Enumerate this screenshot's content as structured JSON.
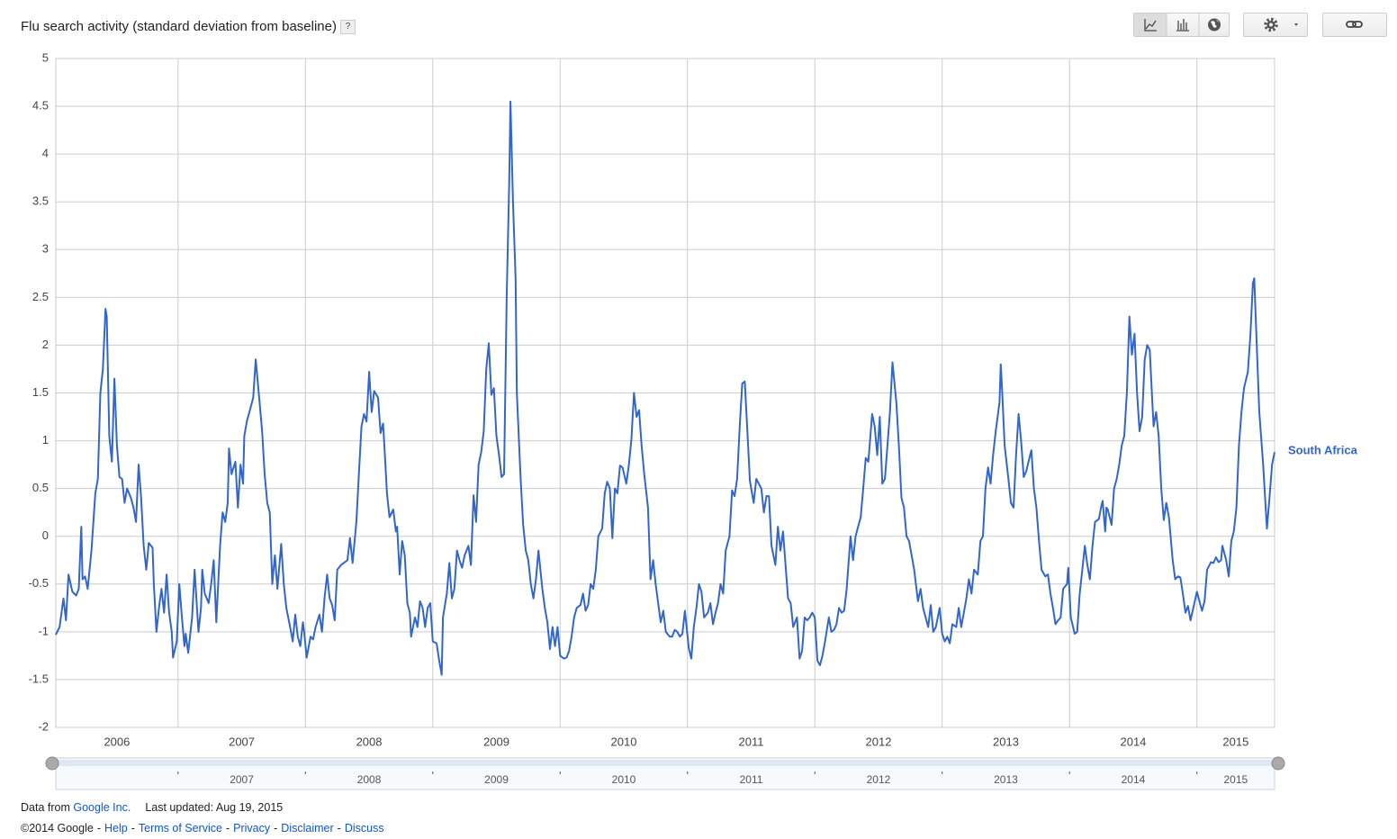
{
  "chart_data": {
    "type": "line",
    "title": "Flu search activity (standard deviation from baseline)",
    "help_badge": "?",
    "x": [
      2006.04,
      2006.07,
      2006.1,
      2006.12,
      2006.14,
      2006.17,
      2006.2,
      2006.22,
      2006.24,
      2006.25,
      2006.27,
      2006.29,
      2006.32,
      2006.35,
      2006.37,
      2006.39,
      2006.41,
      2006.43,
      2006.44,
      2006.46,
      2006.48,
      2006.5,
      2006.52,
      2006.54,
      2006.56,
      2006.58,
      2006.6,
      2006.63,
      2006.65,
      2006.67,
      2006.69,
      2006.71,
      2006.73,
      2006.75,
      2006.77,
      2006.8,
      2006.81,
      2006.83,
      2006.85,
      2006.87,
      2006.89,
      2006.91,
      2006.93,
      2006.95,
      2006.96,
      2006.99,
      2007.01,
      2007.03,
      2007.05,
      2007.06,
      2007.08,
      2007.11,
      2007.13,
      2007.16,
      2007.18,
      2007.19,
      2007.21,
      2007.24,
      2007.26,
      2007.28,
      2007.3,
      2007.33,
      2007.35,
      2007.37,
      2007.39,
      2007.4,
      2007.42,
      2007.45,
      2007.47,
      2007.49,
      2007.51,
      2007.52,
      2007.54,
      2007.57,
      2007.59,
      2007.61,
      2007.64,
      2007.66,
      2007.68,
      2007.7,
      2007.72,
      2007.74,
      2007.76,
      2007.78,
      2007.81,
      2007.83,
      2007.85,
      2007.88,
      2007.9,
      2007.92,
      2007.94,
      2007.96,
      2007.98,
      2007.99,
      2008.01,
      2008.04,
      2008.06,
      2008.08,
      2008.11,
      2008.13,
      2008.15,
      2008.17,
      2008.19,
      2008.21,
      2008.23,
      2008.25,
      2008.28,
      2008.3,
      2008.33,
      2008.35,
      2008.37,
      2008.4,
      2008.42,
      2008.44,
      2008.46,
      2008.48,
      2008.5,
      2008.52,
      2008.54,
      2008.57,
      2008.59,
      2008.61,
      2008.62,
      2008.64,
      2008.66,
      2008.69,
      2008.71,
      2008.72,
      2008.74,
      2008.76,
      2008.78,
      2008.8,
      2008.82,
      2008.83,
      2008.86,
      2008.88,
      2008.9,
      2008.92,
      2008.94,
      2008.96,
      2008.98,
      2009.0,
      2009.03,
      2009.05,
      2009.07,
      2009.08,
      2009.11,
      2009.13,
      2009.15,
      2009.17,
      2009.19,
      2009.21,
      2009.23,
      2009.25,
      2009.28,
      2009.3,
      2009.32,
      2009.34,
      2009.36,
      2009.38,
      2009.4,
      2009.42,
      2009.44,
      2009.46,
      2009.48,
      2009.5,
      2009.52,
      2009.54,
      2009.56,
      2009.58,
      2009.6,
      2009.61,
      2009.63,
      2009.65,
      2009.66,
      2009.69,
      2009.71,
      2009.73,
      2009.75,
      2009.77,
      2009.79,
      2009.81,
      2009.83,
      2009.86,
      2009.88,
      2009.9,
      2009.92,
      2009.94,
      2009.96,
      2009.98,
      2010.0,
      2010.03,
      2010.05,
      2010.07,
      2010.09,
      2010.11,
      2010.13,
      2010.16,
      2010.18,
      2010.2,
      2010.22,
      2010.24,
      2010.26,
      2010.28,
      2010.3,
      2010.33,
      2010.35,
      2010.37,
      2010.39,
      2010.41,
      2010.43,
      2010.45,
      2010.47,
      2010.49,
      2010.52,
      2010.54,
      2010.56,
      2010.58,
      2010.6,
      2010.62,
      2010.64,
      2010.66,
      2010.69,
      2010.71,
      2010.73,
      2010.75,
      2010.77,
      2010.79,
      2010.81,
      2010.83,
      2010.86,
      2010.88,
      2010.9,
      2010.92,
      2010.94,
      2010.96,
      2010.98,
      2011.01,
      2011.03,
      2011.05,
      2011.07,
      2011.09,
      2011.11,
      2011.13,
      2011.16,
      2011.18,
      2011.2,
      2011.22,
      2011.24,
      2011.26,
      2011.28,
      2011.3,
      2011.33,
      2011.35,
      2011.37,
      2011.39,
      2011.41,
      2011.43,
      2011.45,
      2011.47,
      2011.49,
      2011.52,
      2011.54,
      2011.56,
      2011.58,
      2011.6,
      2011.62,
      2011.64,
      2011.66,
      2011.69,
      2011.71,
      2011.73,
      2011.75,
      2011.77,
      2011.79,
      2011.81,
      2011.83,
      2011.86,
      2011.88,
      2011.9,
      2011.92,
      2011.94,
      2011.96,
      2011.98,
      2012.0,
      2012.02,
      2012.04,
      2012.06,
      2012.08,
      2012.11,
      2012.13,
      2012.15,
      2012.17,
      2012.19,
      2012.21,
      2012.23,
      2012.25,
      2012.28,
      2012.3,
      2012.32,
      2012.34,
      2012.36,
      2012.38,
      2012.4,
      2012.42,
      2012.45,
      2012.47,
      2012.49,
      2012.51,
      2012.53,
      2012.55,
      2012.57,
      2012.59,
      2012.61,
      2012.64,
      2012.66,
      2012.68,
      2012.7,
      2012.72,
      2012.74,
      2012.76,
      2012.78,
      2012.81,
      2012.83,
      2012.85,
      2012.87,
      2012.89,
      2012.91,
      2012.93,
      2012.95,
      2012.98,
      2013.0,
      2013.02,
      2013.04,
      2013.06,
      2013.08,
      2013.11,
      2013.13,
      2013.15,
      2013.17,
      2013.19,
      2013.21,
      2013.23,
      2013.25,
      2013.28,
      2013.3,
      2013.32,
      2013.34,
      2013.36,
      2013.38,
      2013.4,
      2013.42,
      2013.45,
      2013.46,
      2013.47,
      2013.49,
      2013.52,
      2013.54,
      2013.56,
      2013.58,
      2013.6,
      2013.62,
      2013.64,
      2013.66,
      2013.69,
      2013.7,
      2013.72,
      2013.74,
      2013.76,
      2013.78,
      2013.81,
      2013.83,
      2013.85,
      2013.87,
      2013.89,
      2013.91,
      2013.93,
      2013.95,
      2013.98,
      2013.99,
      2014.01,
      2014.04,
      2014.06,
      2014.08,
      2014.1,
      2014.12,
      2014.14,
      2014.16,
      2014.18,
      2014.2,
      2014.23,
      2014.25,
      2014.26,
      2014.28,
      2014.29,
      2014.3,
      2014.33,
      2014.35,
      2014.37,
      2014.39,
      2014.41,
      2014.43,
      2014.45,
      2014.47,
      2014.49,
      2014.51,
      2014.53,
      2014.55,
      2014.57,
      2014.59,
      2014.61,
      2014.63,
      2014.65,
      2014.66,
      2014.68,
      2014.7,
      2014.72,
      2014.74,
      2014.76,
      2014.78,
      2014.81,
      2014.83,
      2014.85,
      2014.87,
      2014.89,
      2014.91,
      2014.93,
      2014.95,
      2014.98,
      2015.0,
      2015.02,
      2015.04,
      2015.06,
      2015.08,
      2015.11,
      2015.13,
      2015.15,
      2015.17,
      2015.19,
      2015.2,
      2015.23,
      2015.25,
      2015.27,
      2015.29,
      2015.31,
      2015.33,
      2015.35,
      2015.37,
      2015.4,
      2015.42,
      2015.44,
      2015.45,
      2015.47,
      2015.49,
      2015.52,
      2015.54,
      2015.55,
      2015.57,
      2015.59,
      2015.61
    ],
    "series": [
      {
        "name": "South Africa",
        "color": "#3366cc",
        "values": [
          -1.03,
          -0.95,
          -0.65,
          -0.88,
          -0.4,
          -0.58,
          -0.62,
          -0.55,
          0.1,
          -0.45,
          -0.42,
          -0.55,
          -0.15,
          0.45,
          0.6,
          1.5,
          1.75,
          2.38,
          2.3,
          1.05,
          0.78,
          1.65,
          0.95,
          0.62,
          0.6,
          0.35,
          0.5,
          0.4,
          0.3,
          0.15,
          0.75,
          0.4,
          -0.1,
          -0.35,
          -0.07,
          -0.12,
          -0.5,
          -1.0,
          -0.75,
          -0.55,
          -0.8,
          -0.4,
          -0.8,
          -1.0,
          -1.27,
          -1.1,
          -0.5,
          -0.85,
          -1.15,
          -1.02,
          -1.22,
          -0.85,
          -0.35,
          -1.0,
          -0.75,
          -0.35,
          -0.6,
          -0.7,
          -0.5,
          -0.25,
          -0.9,
          -0.1,
          0.25,
          0.15,
          0.35,
          0.92,
          0.65,
          0.78,
          0.3,
          0.75,
          0.55,
          1.05,
          1.2,
          1.35,
          1.45,
          1.85,
          1.4,
          1.1,
          0.65,
          0.35,
          0.25,
          -0.5,
          -0.2,
          -0.55,
          -0.08,
          -0.5,
          -0.75,
          -0.95,
          -1.1,
          -0.82,
          -1.05,
          -1.15,
          -0.9,
          -1.0,
          -1.27,
          -1.05,
          -1.08,
          -0.95,
          -0.82,
          -1.0,
          -0.65,
          -0.4,
          -0.65,
          -0.72,
          -0.88,
          -0.35,
          -0.3,
          -0.28,
          -0.25,
          -0.02,
          -0.28,
          0.15,
          0.65,
          1.15,
          1.28,
          1.2,
          1.72,
          1.3,
          1.52,
          1.45,
          1.08,
          1.18,
          0.95,
          0.45,
          0.2,
          0.28,
          0.05,
          0.1,
          -0.4,
          -0.05,
          -0.2,
          -0.7,
          -0.8,
          -1.05,
          -0.85,
          -0.95,
          -0.68,
          -0.75,
          -0.95,
          -0.75,
          -0.7,
          -1.1,
          -1.12,
          -1.3,
          -1.45,
          -0.85,
          -0.6,
          -0.28,
          -0.65,
          -0.55,
          -0.15,
          -0.25,
          -0.33,
          -0.2,
          -0.1,
          -0.3,
          0.43,
          0.15,
          0.75,
          0.88,
          1.1,
          1.75,
          2.02,
          1.48,
          1.55,
          1.05,
          0.85,
          0.62,
          0.65,
          2.5,
          3.7,
          4.55,
          3.5,
          2.7,
          1.5,
          0.6,
          0.12,
          -0.15,
          -0.25,
          -0.5,
          -0.65,
          -0.45,
          -0.15,
          -0.55,
          -0.75,
          -0.9,
          -1.18,
          -0.95,
          -1.15,
          -0.95,
          -1.25,
          -1.28,
          -1.27,
          -1.2,
          -1.05,
          -0.85,
          -0.75,
          -0.72,
          -0.6,
          -0.78,
          -0.72,
          -0.5,
          -0.55,
          -0.35,
          0.0,
          0.08,
          0.45,
          0.57,
          0.5,
          -0.02,
          0.5,
          0.45,
          0.74,
          0.72,
          0.55,
          0.75,
          1.02,
          1.5,
          1.25,
          1.32,
          0.95,
          0.65,
          0.3,
          -0.45,
          -0.25,
          -0.5,
          -0.7,
          -0.9,
          -0.78,
          -1.0,
          -1.05,
          -1.05,
          -0.98,
          -1.0,
          -1.05,
          -1.02,
          -0.78,
          -1.17,
          -1.28,
          -0.95,
          -0.75,
          -0.5,
          -0.58,
          -0.85,
          -0.8,
          -0.7,
          -0.92,
          -0.8,
          -0.7,
          -0.5,
          -0.6,
          -0.15,
          0.0,
          0.48,
          0.42,
          0.6,
          1.15,
          1.6,
          1.62,
          1.1,
          0.58,
          0.35,
          0.6,
          0.55,
          0.5,
          0.25,
          0.42,
          0.42,
          -0.1,
          -0.3,
          0.1,
          -0.15,
          0.05,
          -0.3,
          -0.65,
          -0.7,
          -0.95,
          -0.85,
          -1.28,
          -1.2,
          -0.85,
          -0.88,
          -0.85,
          -0.8,
          -0.85,
          -1.3,
          -1.35,
          -1.25,
          -1.1,
          -0.85,
          -1.0,
          -0.98,
          -0.92,
          -0.75,
          -0.8,
          -0.78,
          -0.55,
          0.0,
          -0.25,
          0.0,
          0.1,
          0.2,
          0.5,
          0.82,
          0.78,
          1.28,
          1.15,
          0.85,
          1.25,
          0.55,
          0.6,
          0.95,
          1.3,
          1.82,
          1.4,
          0.95,
          0.4,
          0.3,
          0.0,
          -0.05,
          -0.2,
          -0.35,
          -0.68,
          -0.55,
          -0.75,
          -0.85,
          -0.95,
          -0.72,
          -1.0,
          -0.95,
          -0.75,
          -1.02,
          -1.1,
          -1.05,
          -1.12,
          -0.92,
          -0.95,
          -0.75,
          -0.95,
          -0.8,
          -0.65,
          -0.45,
          -0.6,
          -0.35,
          -0.4,
          -0.05,
          0.0,
          0.5,
          0.72,
          0.55,
          0.85,
          1.1,
          1.4,
          1.8,
          1.55,
          0.95,
          0.6,
          0.35,
          0.3,
          0.85,
          1.28,
          1.0,
          0.62,
          0.68,
          0.85,
          0.9,
          0.5,
          0.3,
          -0.05,
          -0.35,
          -0.42,
          -0.4,
          -0.6,
          -0.75,
          -0.92,
          -0.88,
          -0.85,
          -0.55,
          -0.5,
          -0.33,
          -0.85,
          -1.02,
          -1.0,
          -0.6,
          -0.35,
          -0.1,
          -0.3,
          -0.45,
          -0.1,
          0.15,
          0.18,
          0.32,
          0.37,
          0.05,
          0.3,
          0.28,
          0.12,
          0.5,
          0.6,
          0.75,
          0.95,
          1.05,
          1.5,
          2.3,
          1.9,
          2.12,
          1.5,
          1.1,
          1.25,
          1.85,
          2.0,
          1.95,
          1.4,
          1.15,
          1.3,
          1.05,
          0.5,
          0.17,
          0.35,
          0.2,
          -0.25,
          -0.45,
          -0.42,
          -0.43,
          -0.6,
          -0.8,
          -0.73,
          -0.88,
          -0.7,
          -0.58,
          -0.68,
          -0.78,
          -0.68,
          -0.35,
          -0.27,
          -0.28,
          -0.22,
          -0.27,
          -0.25,
          -0.1,
          -0.25,
          -0.42,
          -0.05,
          0.05,
          0.3,
          0.95,
          1.3,
          1.55,
          1.72,
          2.1,
          2.65,
          2.7,
          2.0,
          1.3,
          0.75,
          0.3,
          0.08,
          0.4,
          0.75,
          0.88
        ]
      }
    ],
    "xlim": [
      2006.04,
      2015.61
    ],
    "xticks": [
      2006,
      2007,
      2008,
      2009,
      2010,
      2011,
      2012,
      2013,
      2014,
      2015
    ],
    "ylim": [
      -2,
      5
    ],
    "yticks": [
      -2,
      -1.5,
      -1,
      -0.5,
      0,
      0.5,
      1,
      1.5,
      2,
      2.5,
      3,
      3.5,
      4,
      4.5,
      5
    ],
    "grid": true,
    "navigator_ticks": [
      2007,
      2008,
      2009,
      2010,
      2011,
      2012,
      2013,
      2014,
      2015
    ]
  },
  "footer": {
    "source_prefix": "Data from",
    "source_link": "Google Inc.",
    "updated": "Last updated: Aug 19, 2015",
    "copyright": "©2014 Google",
    "separator": "-",
    "links": [
      "Help",
      "Terms of Service",
      "Privacy",
      "Disclaimer",
      "Discuss"
    ]
  }
}
